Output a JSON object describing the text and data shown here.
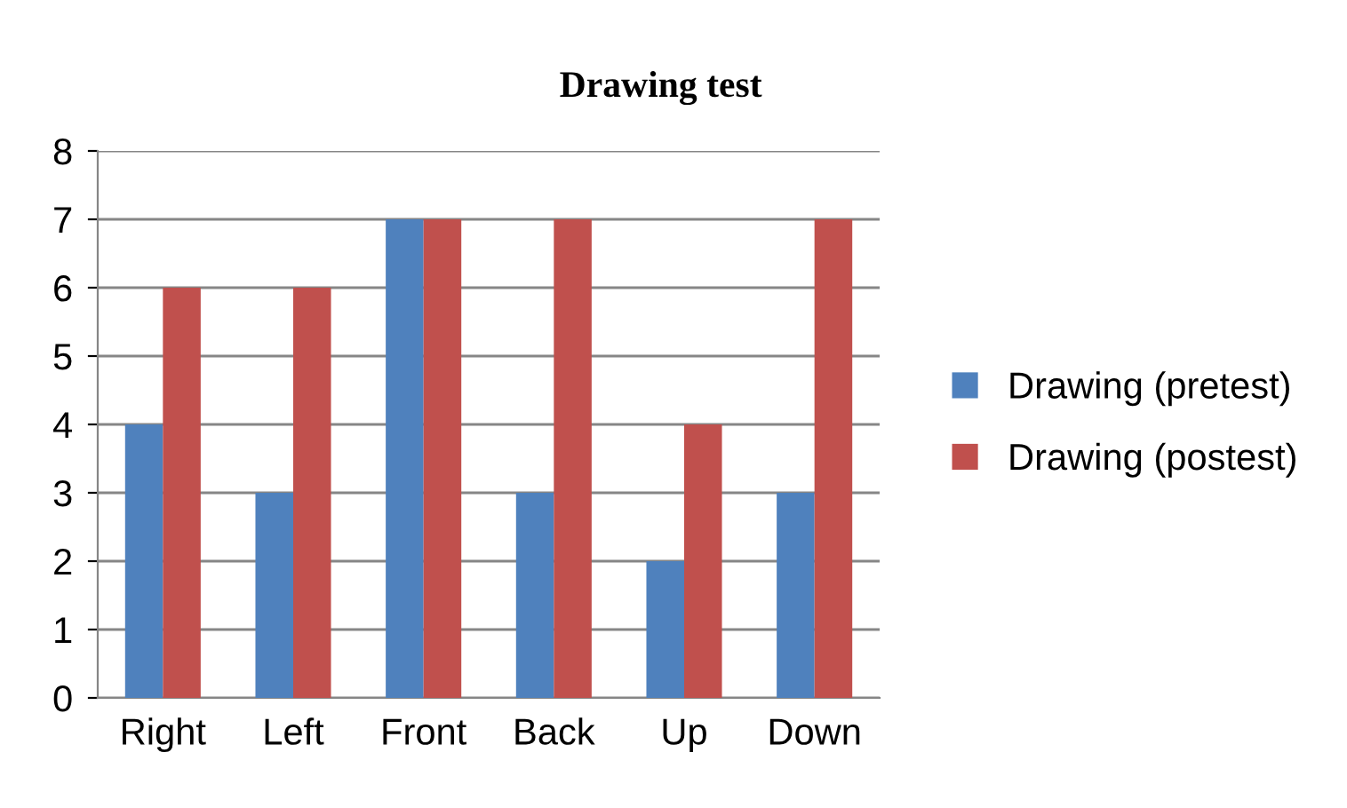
{
  "chart_data": {
    "type": "bar",
    "title": "Drawing test",
    "categories": [
      "Right",
      "Left",
      "Front",
      "Back",
      "Up",
      "Down"
    ],
    "series": [
      {
        "name": "Drawing (pretest)",
        "color": "#4f81bd",
        "values": [
          4,
          3,
          7,
          3,
          2,
          3
        ]
      },
      {
        "name": "Drawing (postest)",
        "color": "#c0504d",
        "values": [
          6,
          6,
          7,
          7,
          4,
          7
        ]
      }
    ],
    "ylim": [
      0,
      8
    ],
    "yticks": [
      0,
      1,
      2,
      3,
      4,
      5,
      6,
      7,
      8
    ],
    "grid": "y",
    "legend": "right"
  }
}
